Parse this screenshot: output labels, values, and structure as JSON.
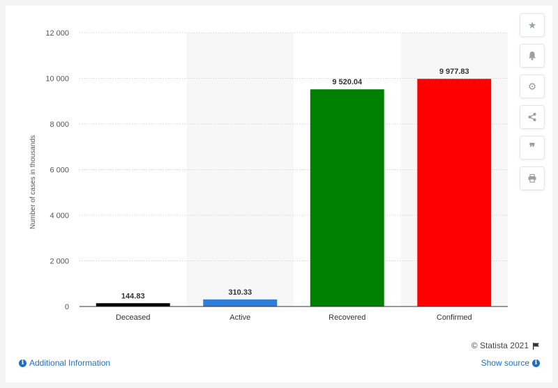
{
  "chart_data": {
    "type": "bar",
    "categories": [
      "Deceased",
      "Active",
      "Recovered",
      "Confirmed"
    ],
    "values": [
      144.83,
      310.33,
      9520.04,
      9977.83
    ],
    "value_labels": [
      "144.83",
      "310.33",
      "9 520.04",
      "9 977.83"
    ],
    "colors": [
      "#000000",
      "#2f7ed8",
      "#008000",
      "#ff0000"
    ],
    "ylabel": "Number of cases in thousands",
    "xlabel": "",
    "ylim": [
      0,
      12000
    ],
    "yticks": [
      0,
      2000,
      4000,
      6000,
      8000,
      10000,
      12000
    ],
    "ytick_labels": [
      "0",
      "2 000",
      "4 000",
      "6 000",
      "8 000",
      "10 000",
      "12 000"
    ],
    "grid": true,
    "alternate_band_color": "#f7f7f7"
  },
  "toolbar": {
    "icons": [
      "star-icon",
      "bell-icon",
      "gear-icon",
      "share-icon",
      "quote-icon",
      "print-icon"
    ]
  },
  "footer": {
    "copyright": "© Statista 2021",
    "additional_info": "Additional Information",
    "show_source": "Show source"
  }
}
